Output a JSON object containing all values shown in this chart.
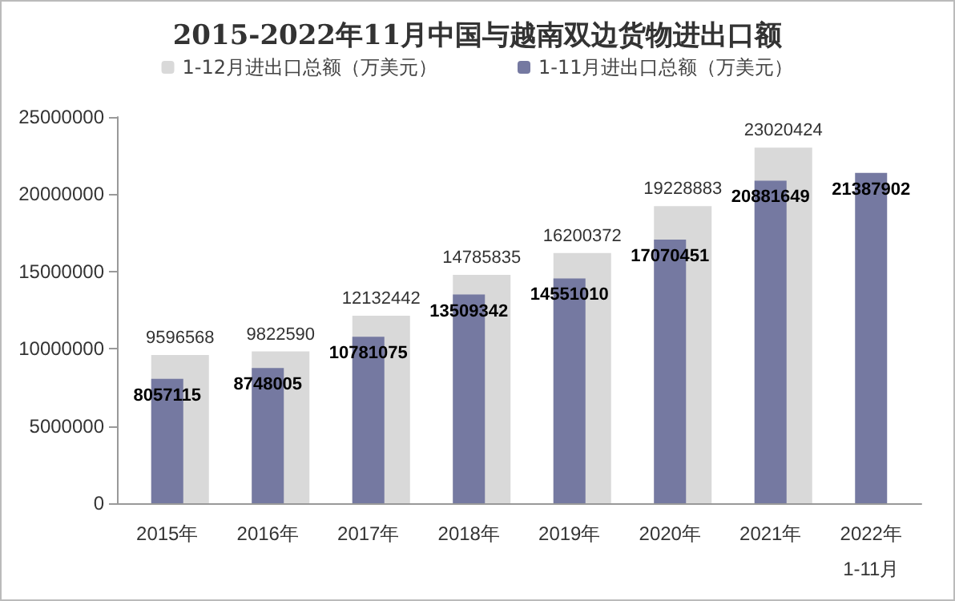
{
  "chart_data": {
    "type": "bar",
    "title": "2015-2022年11月中国与越南双边货物进出口额",
    "categories": [
      "2015年",
      "2016年",
      "2017年",
      "2018年",
      "2019年",
      "2020年",
      "2021年",
      "2022年\n1-11月"
    ],
    "series": [
      {
        "name": "1-12月进出口总额（万美元）",
        "color": "#d9d9d9",
        "values": [
          9596568,
          9822590,
          12132442,
          14785835,
          16200372,
          19228883,
          23020424,
          null
        ]
      },
      {
        "name": "1-11月进出口总额（万美元）",
        "color": "#7579a1",
        "values": [
          8057115,
          8748005,
          10781075,
          13509342,
          14551010,
          17070451,
          20881649,
          21387902
        ]
      }
    ],
    "ylim": [
      0,
      25000000
    ],
    "yticks": [
      0,
      5000000,
      10000000,
      15000000,
      20000000,
      25000000
    ],
    "grid": false,
    "legend": "top",
    "data_labels": true
  }
}
